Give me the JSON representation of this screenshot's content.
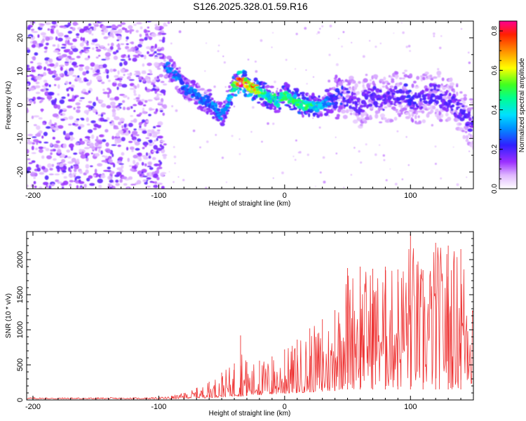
{
  "page": {
    "title": "S126.2025.328.01.59.R16"
  },
  "chart_data": [
    {
      "type": "heatmap",
      "title": "S126.2025.328.01.59.R16",
      "xlabel": "Height of straight line (km)",
      "ylabel": "Frequency (Hz)",
      "xlim": [
        -205,
        150
      ],
      "ylim": [
        -25,
        25
      ],
      "xticks": [
        -200,
        -100,
        0,
        100
      ],
      "yticks": [
        -20,
        -10,
        0,
        10,
        20
      ],
      "colorbar": {
        "label": "Normalized spectral amplitude",
        "range": [
          0,
          0.85
        ],
        "ticks": [
          0.0,
          0.2,
          0.4,
          0.6,
          0.8
        ],
        "colormap": "white-purple-blue-cyan-green-yellow-red-magenta"
      },
      "noise_region": {
        "x": [
          -205,
          -95
        ],
        "y": [
          -25,
          25
        ],
        "amplitude": [
          0.05,
          0.2
        ]
      },
      "ridge": {
        "x": [
          -95,
          -90,
          -85,
          -80,
          -75,
          -70,
          -65,
          -60,
          -55,
          -50,
          -45,
          -40,
          -35,
          -30,
          -25,
          -20,
          -15,
          -10,
          -5,
          0,
          5,
          10,
          15,
          20,
          25,
          30,
          35,
          40,
          45,
          50,
          55,
          60,
          65,
          70,
          75,
          80,
          85,
          90,
          95,
          100,
          105,
          110,
          115,
          120,
          125,
          130,
          135,
          140,
          145,
          150
        ],
        "frequency": [
          12,
          10,
          8,
          5,
          4,
          3,
          1.5,
          1,
          -1,
          -3,
          1,
          6,
          7,
          6,
          5,
          4,
          3,
          2,
          1,
          3,
          2,
          1,
          0,
          0.5,
          -1,
          0,
          1,
          2,
          3,
          2,
          1,
          0,
          2,
          3,
          2,
          1,
          2,
          3,
          4,
          2,
          1,
          2,
          3,
          4,
          2,
          1,
          0,
          -2,
          -4,
          -6
        ],
        "amplitude": [
          0.3,
          0.35,
          0.3,
          0.3,
          0.3,
          0.3,
          0.3,
          0.3,
          0.35,
          0.3,
          0.4,
          0.55,
          0.85,
          0.7,
          0.75,
          0.6,
          0.45,
          0.5,
          0.45,
          0.55,
          0.5,
          0.5,
          0.55,
          0.5,
          0.45,
          0.4,
          0.3,
          0.25,
          0.25,
          0.2,
          0.2,
          0.2,
          0.2,
          0.2,
          0.2,
          0.2,
          0.2,
          0.2,
          0.2,
          0.25,
          0.2,
          0.2,
          0.2,
          0.2,
          0.2,
          0.2,
          0.2,
          0.2,
          0.2,
          0.2
        ]
      }
    },
    {
      "type": "line",
      "title": "",
      "xlabel": "Height of straight line (km)",
      "ylabel": "SNR (10 * v/v)",
      "xlim": [
        -205,
        150
      ],
      "ylim": [
        0,
        2400
      ],
      "xticks": [
        -200,
        -100,
        0,
        100
      ],
      "yticks": [
        0,
        500,
        1000,
        1500,
        2000
      ],
      "color": "#ee3333",
      "series": [
        {
          "name": "SNR",
          "x": [
            -205,
            -190,
            -170,
            -150,
            -130,
            -110,
            -100,
            -90,
            -80,
            -70,
            -60,
            -50,
            -40,
            -35,
            -30,
            -20,
            -10,
            0,
            10,
            20,
            30,
            40,
            50,
            60,
            70,
            80,
            90,
            100,
            110,
            120,
            130,
            140,
            150
          ],
          "min": [
            15,
            15,
            15,
            15,
            15,
            15,
            15,
            15,
            20,
            25,
            30,
            40,
            50,
            50,
            60,
            70,
            80,
            90,
            100,
            110,
            120,
            130,
            150,
            150,
            150,
            150,
            150,
            150,
            150,
            150,
            150,
            150,
            150
          ],
          "max": [
            40,
            35,
            35,
            35,
            35,
            35,
            40,
            60,
            100,
            170,
            260,
            390,
            520,
            920,
            540,
            560,
            620,
            720,
            860,
            1020,
            1150,
            1280,
            1880,
            1900,
            1870,
            1900,
            1860,
            2370,
            1850,
            2240,
            2200,
            2150,
            1950
          ]
        }
      ]
    }
  ]
}
